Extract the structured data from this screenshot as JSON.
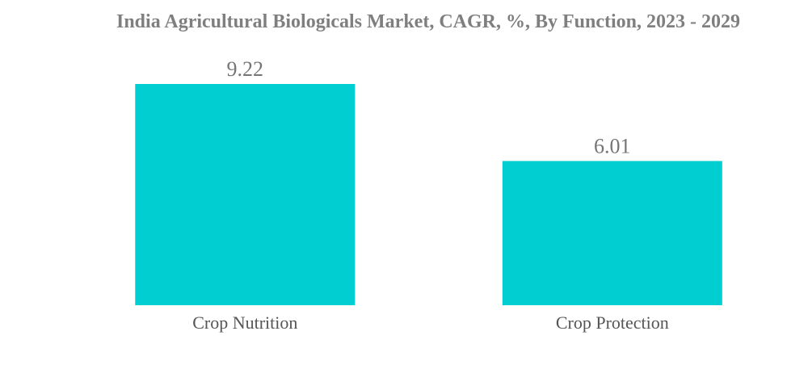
{
  "chart_data": {
    "type": "bar",
    "title": "India Agricultural Biologicals Market, CAGR, %, By Function, 2023 - 2029",
    "categories": [
      "Crop Nutrition",
      "Crop Protection"
    ],
    "values": [
      9.22,
      6.01
    ],
    "value_labels": [
      "9.22",
      "6.01"
    ],
    "xlabel": "",
    "ylabel": "",
    "ylim": [
      0,
      9.22
    ],
    "grid": false,
    "legend": "none",
    "colors": {
      "bar": "#00CED1",
      "title": "#7f7f7f",
      "value_label": "#757575",
      "category_label": "#555555"
    }
  }
}
